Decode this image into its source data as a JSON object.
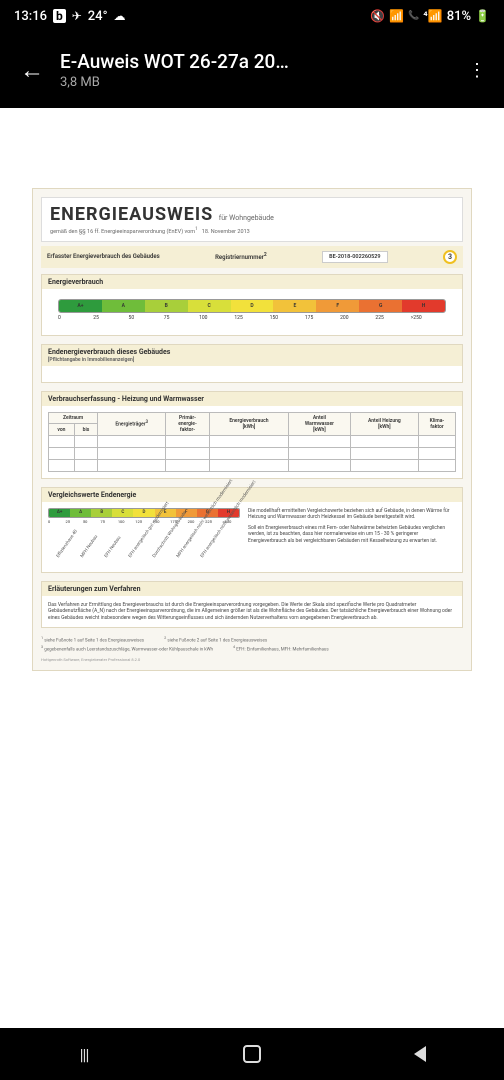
{
  "status": {
    "time": "13:16",
    "temp": "24°",
    "battery": "81%"
  },
  "appbar": {
    "title": "E-Auweis WOT 26-27a 20…",
    "size": "3,8 MB"
  },
  "doc": {
    "title": "ENERGIEAUSWEIS",
    "subtitle": "für Wohngebäude",
    "law": "gemäß den §§ 16 ff. Energieeinsparverordnung (EnEV) vom",
    "law_sup": "1",
    "law_date": "18. November 2013",
    "captured_label": "Erfasster Energieverbrauch des Gebäudes",
    "reg_label": "Registriernummer",
    "reg_sup": "2",
    "reg_value": "BE-2018-002260529",
    "page": "3",
    "section_verbrauch": "Energieverbrauch",
    "scale": {
      "classes": [
        "A+",
        "A",
        "B",
        "C",
        "D",
        "E",
        "F",
        "G",
        "H"
      ],
      "colors": [
        "#2e9b3d",
        "#6fbd3a",
        "#a8cf3a",
        "#d8df3a",
        "#f2e13b",
        "#f2c23a",
        "#f09a38",
        "#ea7132",
        "#e23a2c"
      ],
      "ticks": [
        "0",
        "25",
        "50",
        "75",
        "100",
        "125",
        "150",
        "175",
        "200",
        "225",
        ">250"
      ]
    },
    "end_title": "Endenergieverbrauch dieses Gebäudes",
    "end_sub": "[Pflichtangabe in Immobilienanzeigen]",
    "table_title": "Verbrauchserfassung - Heizung und Warmwasser",
    "table_headers": {
      "zeitraum": "Zeitraum",
      "von": "von",
      "bis": "bis",
      "traeger": "Energieträger",
      "traeger_sup": "3",
      "primfaktor": "Primär-\nenergie-\nfaktor-",
      "verbrauch": "Energieverbrauch\n[kWh]",
      "anteil_ww": "Anteil\nWarmwasser\n[kWh]",
      "anteil_hz": "Anteil Heizung\n[kWh]",
      "klima": "Klima-\nfaktor"
    },
    "compare_title": "Vergleichswerte Endenergie",
    "compare_labels": [
      "Effizienzhaus 40",
      "MFH Neubau",
      "EFH Neubau",
      "EFH energetisch gut modernisiert",
      "Durchschnitt Wohngebäude",
      "MFH energetisch nicht wesentlich modernisiert",
      "EFH energetisch nicht wesentlich modernisiert"
    ],
    "compare_text1": "Die modellhaft ermittelten Vergleichswerte beziehen sich auf Gebäude, in denen Wärme für Heizung und Warmwasser durch Heizkessel im Gebäude bereitgestellt wird.",
    "compare_text2": "Soll ein Energieverbrauch eines mit Fern- oder Nahwärme beheizten Gebäudes verglichen werden, ist zu beachten, dass hier normalerweise ein um 15 - 30 % geringerer Energieverbrauch als bei vergleichbaren Gebäuden mit Kesselheizung zu erwarten ist.",
    "explain_title": "Erläuterungen zum Verfahren",
    "explain_text": "Das Verfahren zur Ermittlung des Energieverbrauchs ist durch die Energieeinsparverordnung vorgegeben. Die Werte der Skala sind spezifische Werte pro Quadratmeter Gebäudenutzfläche (A_N) nach der Energieeinsparverordnung, die im Allgemeinen größer ist als die Wohnfläche des Gebäudes. Der tatsächliche Energieverbrauch einer Wohnung oder eines Gebäudes weicht insbesondere wegen des Witterungseinflusses und sich ändernden Nutzerverhaltens vom angegebenen Energieverbrauch ab.",
    "fn1": "siehe Fußnote 1 auf Seite 1 des Energieausweises",
    "fn2": "siehe Fußnote 2 auf Seite 1 des Energieausweises",
    "fn3": "gegebenenfalls auch Leerstandszuschläge, Warmwasser-oder Kühlpauschale in kWh",
    "fn4": "EFH: Einfamilienhaus, MFH: Mehrfamilienhaus",
    "software": "Hottgenroth Software, Energieberater Professional 8.2.0"
  }
}
